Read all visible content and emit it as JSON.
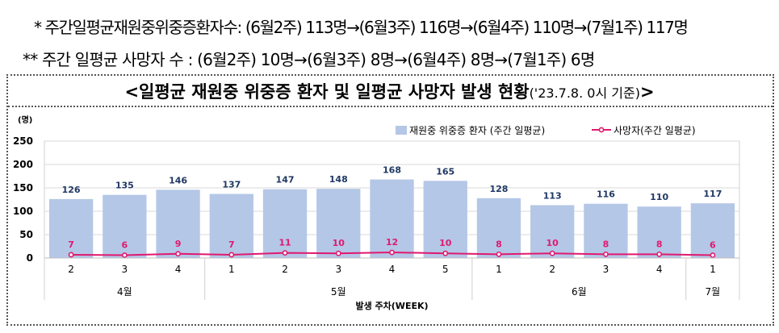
{
  "notes": {
    "line1": "*  주간일평균재원중위중증환자수: (6월2주) 113명→(6월3주) 116명→(6월4주) 110명→(7월1주) 117명",
    "line2": "**  주간 일평균 사망자 수 : (6월2주) 10명→(6월3주) 8명→(6월4주) 8명→(7월1주) 6명"
  },
  "chart_data": {
    "type": "bar",
    "title": "<일평균 재원중 위중증 환자 및 일평균 사망자 발생 현황",
    "title_suffix": "('23.7.8. 0시 기준)",
    "title_end": ">",
    "ylabel": "(명)",
    "xlabel": "발생 주차(WEEK)",
    "ylim": [
      0,
      250
    ],
    "yticks": [
      0,
      50,
      100,
      150,
      200,
      250
    ],
    "grid": true,
    "legend_position": "top-right",
    "categories": [
      "2",
      "3",
      "4",
      "1",
      "2",
      "3",
      "4",
      "5",
      "1",
      "2",
      "3",
      "4",
      "1"
    ],
    "month_groups": [
      {
        "label": "4월",
        "count": 3
      },
      {
        "label": "5월",
        "count": 5
      },
      {
        "label": "6월",
        "count": 4
      },
      {
        "label": "7월",
        "count": 1
      }
    ],
    "series": [
      {
        "name": "재원중 위중증 환자 (주간 일평균)",
        "type": "bar",
        "color": "#b4c7e7",
        "values": [
          126,
          135,
          146,
          137,
          147,
          148,
          168,
          165,
          128,
          113,
          116,
          110,
          117
        ]
      },
      {
        "name": "사망자(주간 일평균)",
        "type": "line",
        "color": "#e0196e",
        "values": [
          7,
          6,
          9,
          7,
          11,
          10,
          12,
          10,
          8,
          10,
          8,
          8,
          6
        ]
      }
    ],
    "bar_label_color": "#203864",
    "line_label_color": "#e0196e"
  }
}
